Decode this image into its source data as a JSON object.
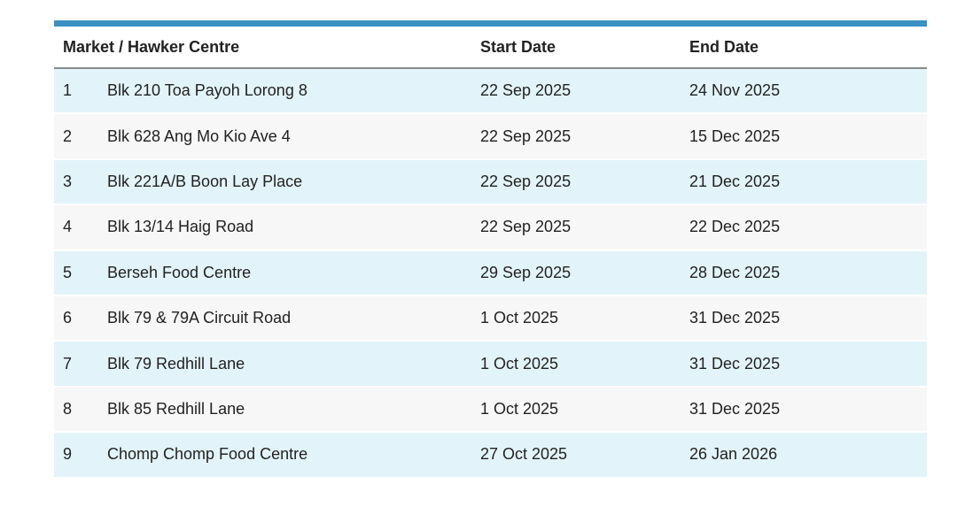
{
  "table": {
    "header": [
      "Market / Hawker Centre",
      "Start Date",
      "End Date"
    ],
    "rows": [
      [
        "1",
        "Blk 210 Toa Payoh Lorong 8",
        "22 Sep 2025",
        "24 Nov 2025"
      ],
      [
        "2",
        "Blk 628 Ang Mo Kio Ave 4",
        "22 Sep 2025",
        "15 Dec 2025"
      ],
      [
        "3",
        "Blk 221A/B Boon Lay Place",
        "22 Sep 2025",
        "21 Dec 2025"
      ],
      [
        "4",
        "Blk 13/14 Haig Road",
        "22 Sep 2025",
        "22 Dec 2025"
      ],
      [
        "5",
        "Berseh Food Centre",
        "29 Sep 2025",
        "28 Dec 2025"
      ],
      [
        "6",
        "Blk 79 & 79A Circuit Road",
        "1 Oct 2025",
        "31 Dec 2025"
      ],
      [
        "7",
        "Blk 79 Redhill Lane",
        "1 Oct 2025",
        "31 Dec 2025"
      ],
      [
        "8",
        "Blk 85 Redhill Lane",
        "1 Oct 2025",
        "31 Dec 2025"
      ],
      [
        "9",
        "Chomp Chomp Food Centre",
        "27 Oct 2025",
        "26 Jan 2026"
      ]
    ]
  }
}
